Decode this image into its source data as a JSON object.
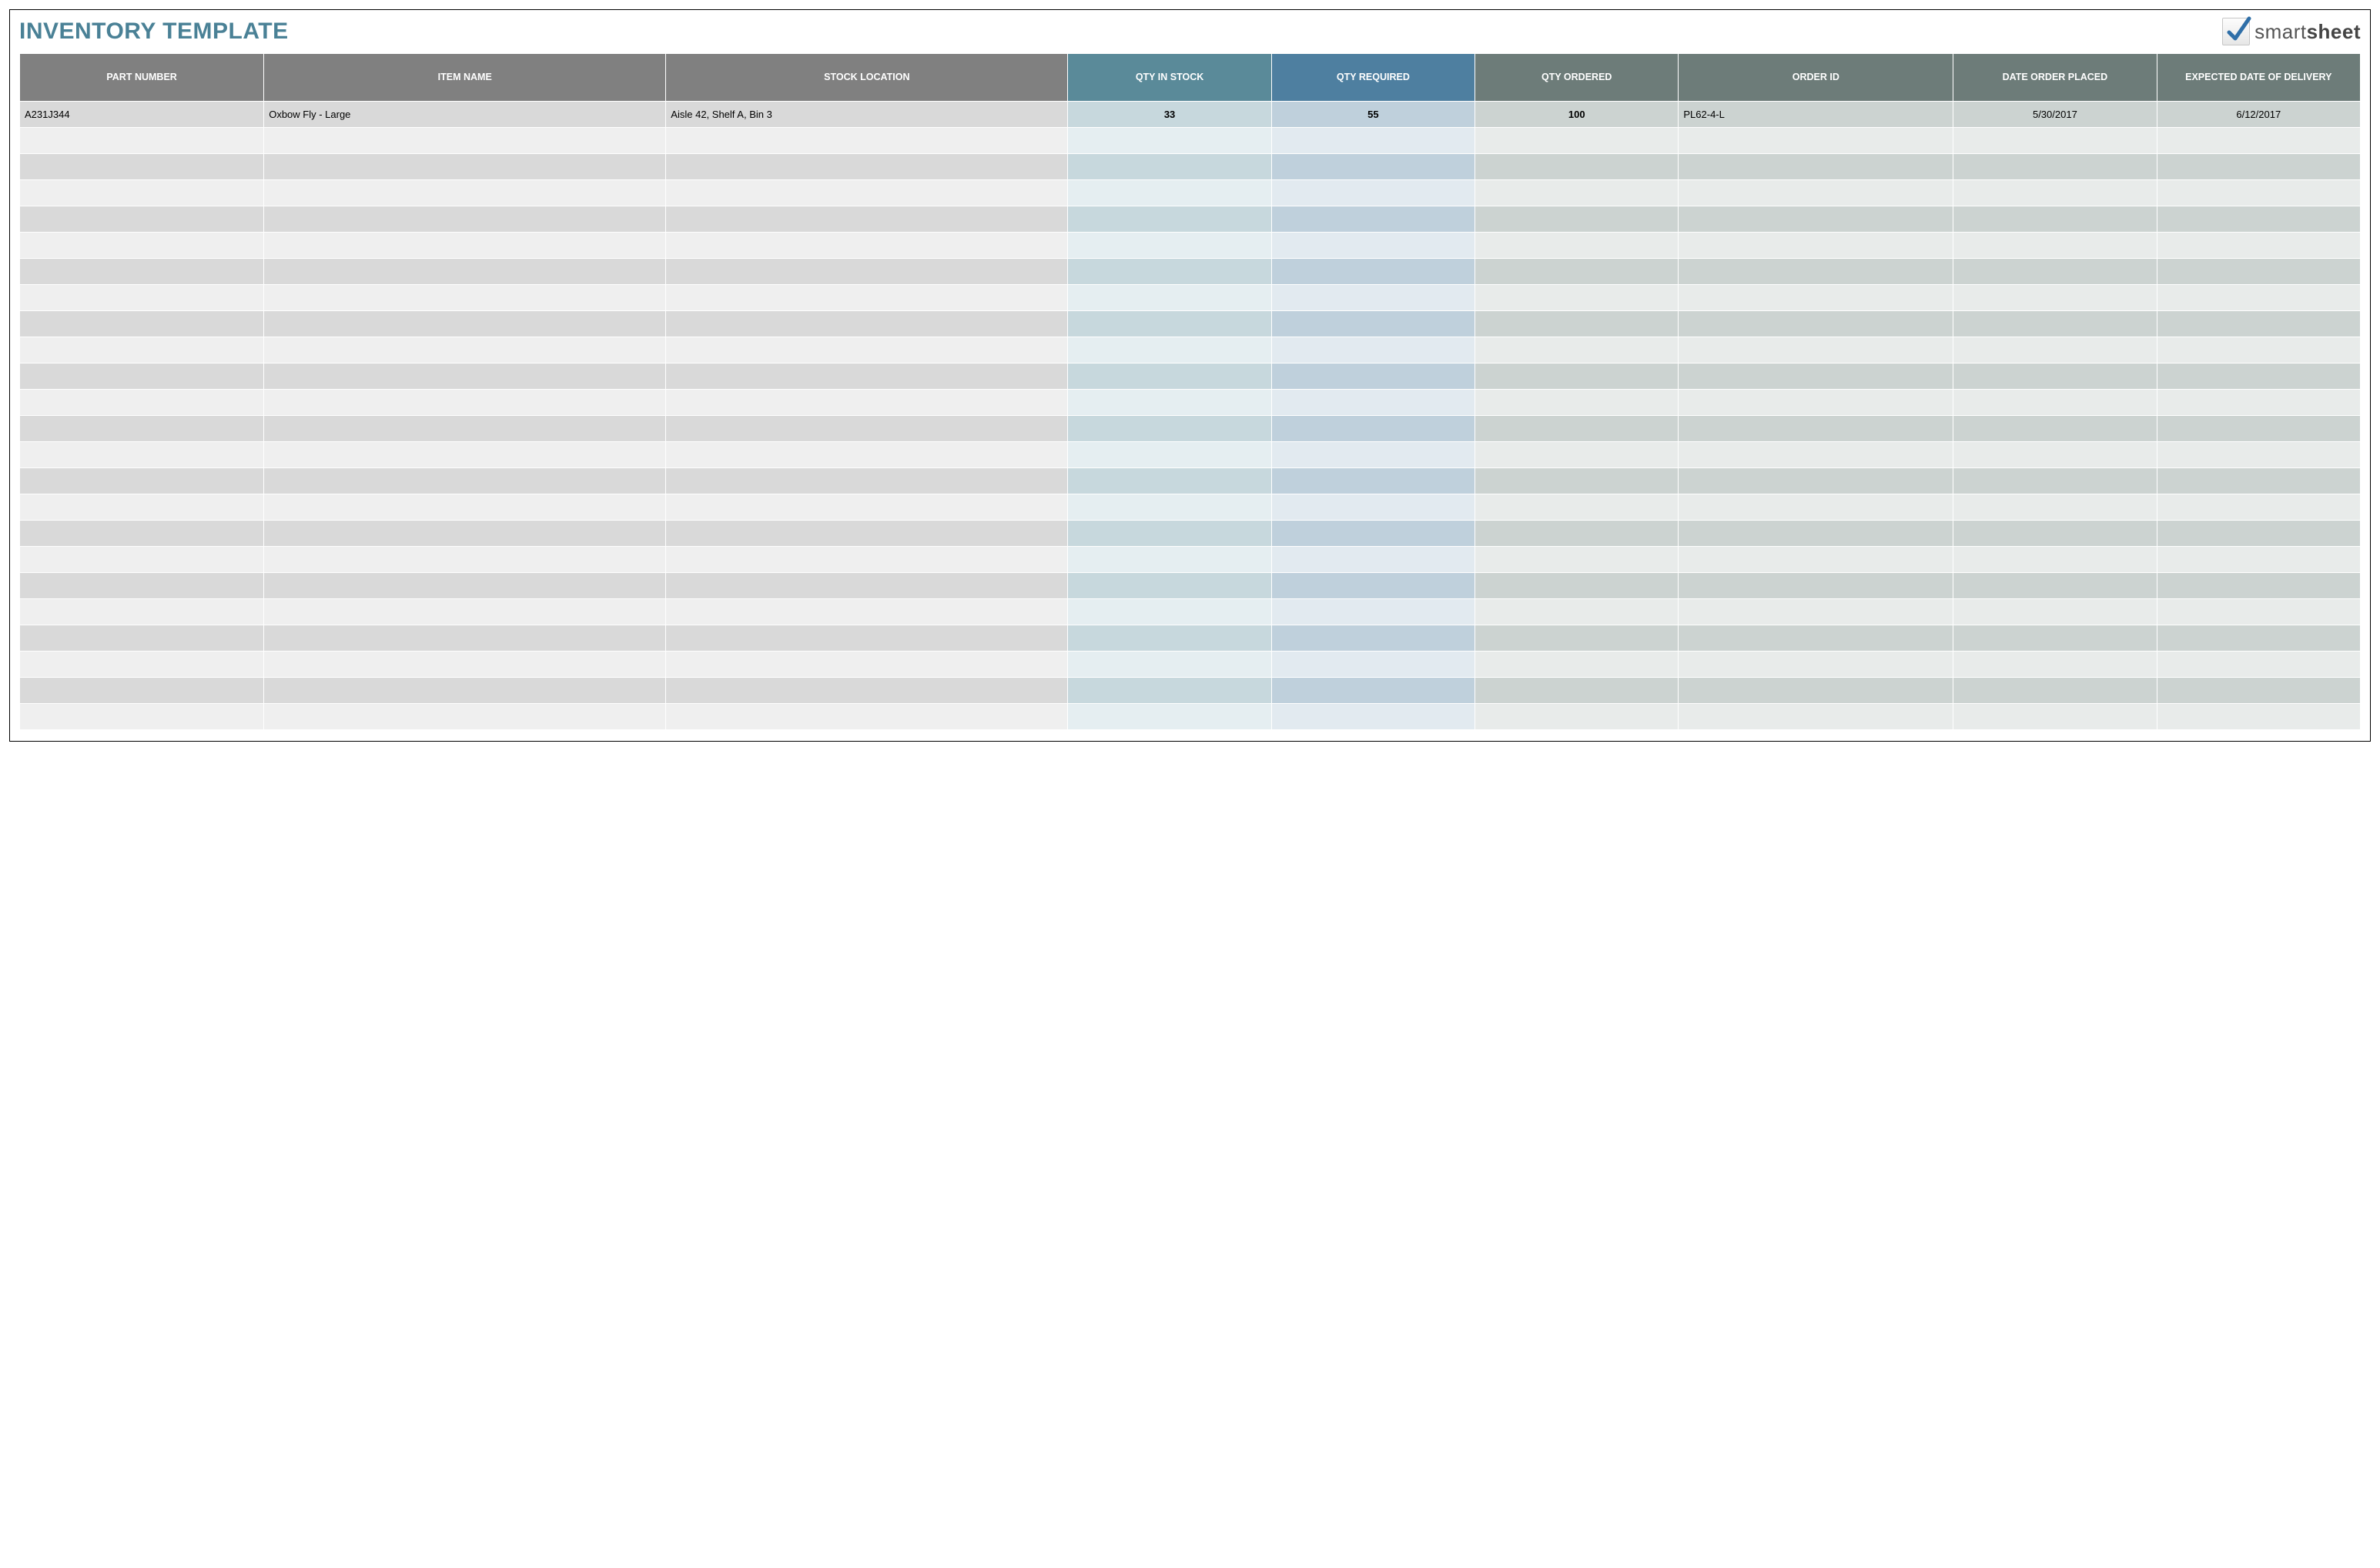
{
  "title": "INVENTORY TEMPLATE",
  "title_color": "#4a8196",
  "logo": {
    "brand_prefix": "smart",
    "brand_suffix": "sheet",
    "check_color": "#2f6fa8"
  },
  "table": {
    "columns": [
      {
        "key": "part_number",
        "label": "PART NUMBER",
        "width": "9.6%",
        "align": "left",
        "header_bg": "#808080",
        "odd_bg": "#d9d9d9",
        "even_bg": "#efefef"
      },
      {
        "key": "item_name",
        "label": "ITEM NAME",
        "width": "15.8%",
        "align": "left",
        "header_bg": "#808080",
        "odd_bg": "#d9d9d9",
        "even_bg": "#efefef"
      },
      {
        "key": "stock_location",
        "label": "STOCK LOCATION",
        "width": "15.8%",
        "align": "left",
        "header_bg": "#808080",
        "odd_bg": "#d9d9d9",
        "even_bg": "#efefef"
      },
      {
        "key": "qty_in_stock",
        "label": "QTY IN STOCK",
        "width": "8%",
        "align": "center",
        "header_bg": "#5a8a99",
        "odd_bg": "#c7d8dd",
        "even_bg": "#e5eef1",
        "bold": true
      },
      {
        "key": "qty_required",
        "label": "QTY REQUIRED",
        "width": "8%",
        "align": "center",
        "header_bg": "#4e7fa0",
        "odd_bg": "#bfd0dc",
        "even_bg": "#e2eaf0",
        "bold": true
      },
      {
        "key": "qty_ordered",
        "label": "QTY ORDERED",
        "width": "8%",
        "align": "center",
        "header_bg": "#6d7c79",
        "odd_bg": "#ccd3d1",
        "even_bg": "#e8ebea",
        "bold": true
      },
      {
        "key": "order_id",
        "label": "ORDER ID",
        "width": "10.8%",
        "align": "left",
        "header_bg": "#6d7c79",
        "odd_bg": "#ccd3d1",
        "even_bg": "#e8ebea"
      },
      {
        "key": "date_placed",
        "label": "DATE ORDER PLACED",
        "width": "8%",
        "align": "center",
        "header_bg": "#6d7c79",
        "odd_bg": "#ccd3d1",
        "even_bg": "#e8ebea"
      },
      {
        "key": "date_delivery",
        "label": "EXPECTED DATE OF DELIVERY",
        "width": "8%",
        "align": "center",
        "header_bg": "#6d7c79",
        "odd_bg": "#ccd3d1",
        "even_bg": "#e8ebea"
      }
    ],
    "total_rows": 24,
    "rows": [
      {
        "part_number": "A231J344",
        "item_name": "Oxbow Fly - Large",
        "stock_location": "Aisle 42, Shelf A, Bin 3",
        "qty_in_stock": "33",
        "qty_required": "55",
        "qty_ordered": "100",
        "order_id": "PL62-4-L",
        "date_placed": "5/30/2017",
        "date_delivery": "6/12/2017"
      }
    ]
  }
}
